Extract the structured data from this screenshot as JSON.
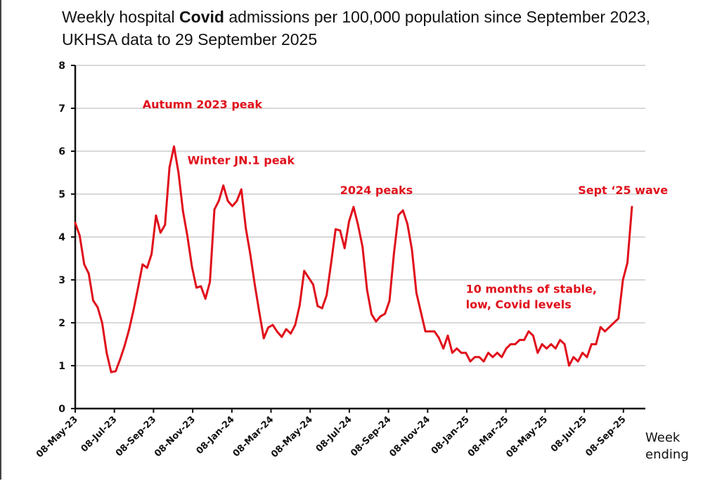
{
  "title": {
    "prefix": "Weekly hospital ",
    "bold": "Covid",
    "suffix": " admissions per 100,000 population since September 2023, UKHSA data to 29 September 2025"
  },
  "chart_data": {
    "type": "line",
    "title": "Weekly hospital Covid admissions per 100,000 population since September 2023, UKHSA data to 29 September 2025",
    "xlabel": "Week ending",
    "xlabel_lines": [
      "Week",
      "ending"
    ],
    "ylabel": "",
    "ylim": [
      0,
      8
    ],
    "yticks": [
      0,
      1,
      2,
      3,
      4,
      5,
      6,
      7,
      8
    ],
    "grid": true,
    "legend": "none",
    "line_color": "#e0101b",
    "x_start": "08-May-23",
    "x_step": "weekly",
    "xtick_labels": [
      "08-May-23",
      "08-Jul-23",
      "08-Sep-23",
      "08-Nov-23",
      "08-Jan-24",
      "08-Mar-24",
      "08-May-24",
      "08-Jul-24",
      "08-Sep-24",
      "08-Nov-24",
      "08-Jan-25",
      "08-Mar-25",
      "08-May-25",
      "08-Jul-25",
      "08-Sep-25"
    ],
    "series": [
      {
        "name": "Weekly hospital Covid admissions per 100,000",
        "values": [
          4.33,
          4.03,
          3.36,
          3.15,
          2.52,
          2.36,
          2.0,
          1.3,
          0.85,
          0.87,
          1.15,
          1.46,
          1.84,
          2.3,
          2.82,
          3.36,
          3.28,
          3.6,
          4.5,
          4.1,
          4.28,
          5.62,
          6.11,
          5.5,
          4.6,
          4.02,
          3.31,
          2.82,
          2.85,
          2.56,
          2.95,
          4.64,
          4.85,
          5.2,
          4.84,
          4.72,
          4.84,
          5.11,
          4.2,
          3.59,
          2.89,
          2.25,
          1.64,
          1.89,
          1.95,
          1.79,
          1.67,
          1.85,
          1.75,
          1.95,
          2.41,
          3.21,
          3.05,
          2.89,
          2.39,
          2.34,
          2.64,
          3.39,
          4.18,
          4.15,
          3.74,
          4.36,
          4.7,
          4.28,
          3.77,
          2.77,
          2.2,
          2.03,
          2.15,
          2.21,
          2.51,
          3.62,
          4.51,
          4.62,
          4.3,
          3.7,
          2.7,
          2.25,
          1.8,
          1.8,
          1.8,
          1.65,
          1.4,
          1.7,
          1.3,
          1.4,
          1.3,
          1.3,
          1.1,
          1.2,
          1.2,
          1.1,
          1.3,
          1.2,
          1.3,
          1.2,
          1.4,
          1.5,
          1.5,
          1.6,
          1.6,
          1.8,
          1.7,
          1.3,
          1.5,
          1.4,
          1.5,
          1.4,
          1.6,
          1.5,
          1.0,
          1.2,
          1.1,
          1.3,
          1.2,
          1.5,
          1.5,
          1.9,
          1.8,
          1.9,
          2.0,
          2.1,
          3.0,
          3.4,
          4.7
        ]
      }
    ],
    "annotations": [
      {
        "id": "autumn-2023-peak",
        "lines": [
          "Autumn 2023 peak"
        ],
        "week_index": 15,
        "value": 7.0
      },
      {
        "id": "winter-jn1-peak",
        "lines": [
          "Winter JN.1 peak"
        ],
        "week_index": 25,
        "value": 5.7
      },
      {
        "id": "peaks-2024",
        "lines": [
          "2024 peaks"
        ],
        "week_index": 59,
        "value": 5.0
      },
      {
        "id": "stable-low-levels",
        "lines": [
          "10 months of stable,",
          "low, Covid levels"
        ],
        "week_index": 87,
        "value": 2.7
      },
      {
        "id": "sept-25-wave",
        "lines": [
          "Sept ‘25 wave"
        ],
        "week_index": 112,
        "value": 5.0
      }
    ]
  }
}
